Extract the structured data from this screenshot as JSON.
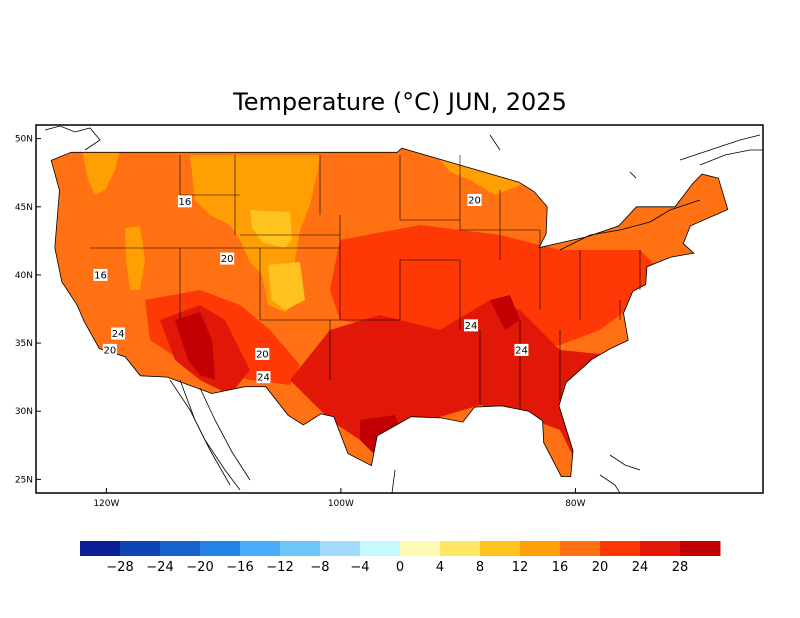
{
  "title": "Temperature (°C) JUN, 2025",
  "axes": {
    "lat_labels": [
      "50N",
      "45N",
      "40N",
      "35N",
      "30N",
      "25N"
    ],
    "lat_values": [
      50,
      45,
      40,
      35,
      30,
      25
    ],
    "lon_labels": [
      "120W",
      "100W",
      "80W"
    ],
    "lon_values": [
      -120,
      -100,
      -80
    ],
    "lon_range": [
      -126,
      -64
    ],
    "lat_range": [
      24,
      51
    ]
  },
  "contour_labels": [
    {
      "text": "16",
      "lon": -113.3,
      "lat": 45.4
    },
    {
      "text": "20",
      "lon": -109.7,
      "lat": 41.2
    },
    {
      "text": "16",
      "lon": -120.5,
      "lat": 40.0
    },
    {
      "text": "20",
      "lon": -88.6,
      "lat": 45.5
    },
    {
      "text": "24",
      "lon": -119.0,
      "lat": 35.7
    },
    {
      "text": "20",
      "lon": -119.7,
      "lat": 34.5
    },
    {
      "text": "20",
      "lon": -106.7,
      "lat": 34.2
    },
    {
      "text": "24",
      "lon": -106.6,
      "lat": 32.5
    },
    {
      "text": "24",
      "lon": -88.9,
      "lat": 36.3
    },
    {
      "text": "24",
      "lon": -84.6,
      "lat": 34.5
    }
  ],
  "colorbar": {
    "colors": [
      "#0a1e96",
      "#0d45b4",
      "#1563d0",
      "#2582e6",
      "#4aacf8",
      "#6cc6f9",
      "#a2dbfb",
      "#c6fafe",
      "#fffab6",
      "#ffe766",
      "#ffc21e",
      "#ff9f03",
      "#ff7112",
      "#ff3906",
      "#e11807",
      "#c20004"
    ],
    "tick_labels": [
      "-28",
      "-24",
      "-20",
      "-16",
      "-12",
      "-8",
      "-4",
      "0",
      "4",
      "8",
      "12",
      "16",
      "20",
      "24",
      "28"
    ]
  }
}
